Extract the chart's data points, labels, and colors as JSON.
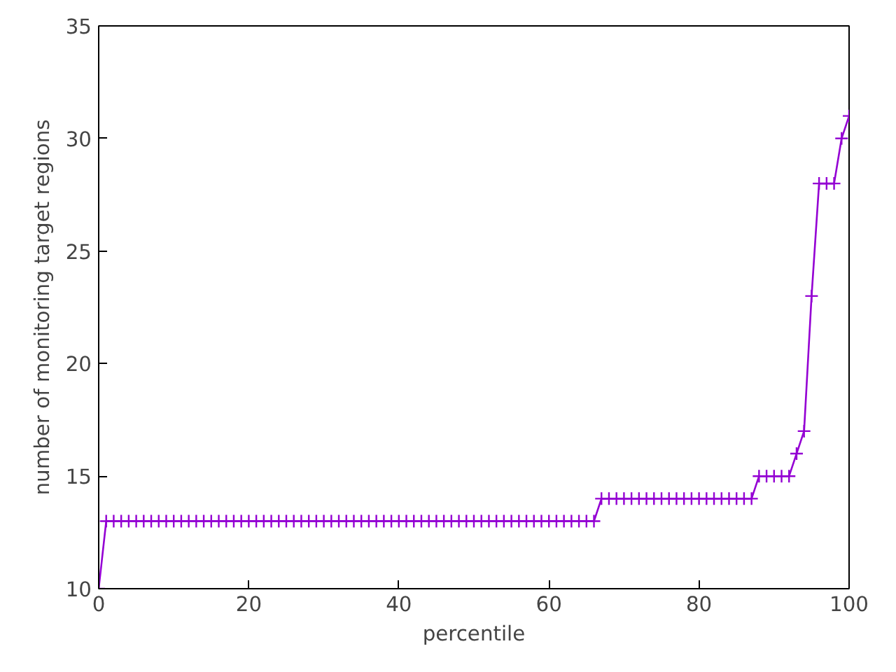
{
  "chart_data": {
    "type": "line",
    "xlabel": "percentile",
    "ylabel": "number of monitoring target regions",
    "x": [
      0,
      1,
      2,
      3,
      4,
      5,
      6,
      7,
      8,
      9,
      10,
      11,
      12,
      13,
      14,
      15,
      16,
      17,
      18,
      19,
      20,
      21,
      22,
      23,
      24,
      25,
      26,
      27,
      28,
      29,
      30,
      31,
      32,
      33,
      34,
      35,
      36,
      37,
      38,
      39,
      40,
      41,
      42,
      43,
      44,
      45,
      46,
      47,
      48,
      49,
      50,
      51,
      52,
      53,
      54,
      55,
      56,
      57,
      58,
      59,
      60,
      61,
      62,
      63,
      64,
      65,
      66,
      67,
      68,
      69,
      70,
      71,
      72,
      73,
      74,
      75,
      76,
      77,
      78,
      79,
      80,
      81,
      82,
      83,
      84,
      85,
      86,
      87,
      88,
      89,
      90,
      91,
      92,
      93,
      94,
      95,
      96,
      97,
      98,
      99,
      100
    ],
    "series": [
      {
        "color": "#9400d3",
        "values": [
          10,
          13,
          13,
          13,
          13,
          13,
          13,
          13,
          13,
          13,
          13,
          13,
          13,
          13,
          13,
          13,
          13,
          13,
          13,
          13,
          13,
          13,
          13,
          13,
          13,
          13,
          13,
          13,
          13,
          13,
          13,
          13,
          13,
          13,
          13,
          13,
          13,
          13,
          13,
          13,
          13,
          13,
          13,
          13,
          13,
          13,
          13,
          13,
          13,
          13,
          13,
          13,
          13,
          13,
          13,
          13,
          13,
          13,
          13,
          13,
          13,
          13,
          13,
          13,
          13,
          13,
          13,
          14,
          14,
          14,
          14,
          14,
          14,
          14,
          14,
          14,
          14,
          14,
          14,
          14,
          14,
          14,
          14,
          14,
          14,
          14,
          14,
          14,
          15,
          15,
          15,
          15,
          15,
          16,
          17,
          23,
          28,
          28,
          28,
          30,
          31
        ]
      }
    ],
    "xlim": [
      0,
      100
    ],
    "ylim": [
      10,
      35
    ],
    "xticks": [
      0,
      20,
      40,
      60,
      80,
      100
    ],
    "yticks": [
      10,
      15,
      20,
      25,
      30,
      35
    ],
    "marker": "cross",
    "grid": false
  }
}
